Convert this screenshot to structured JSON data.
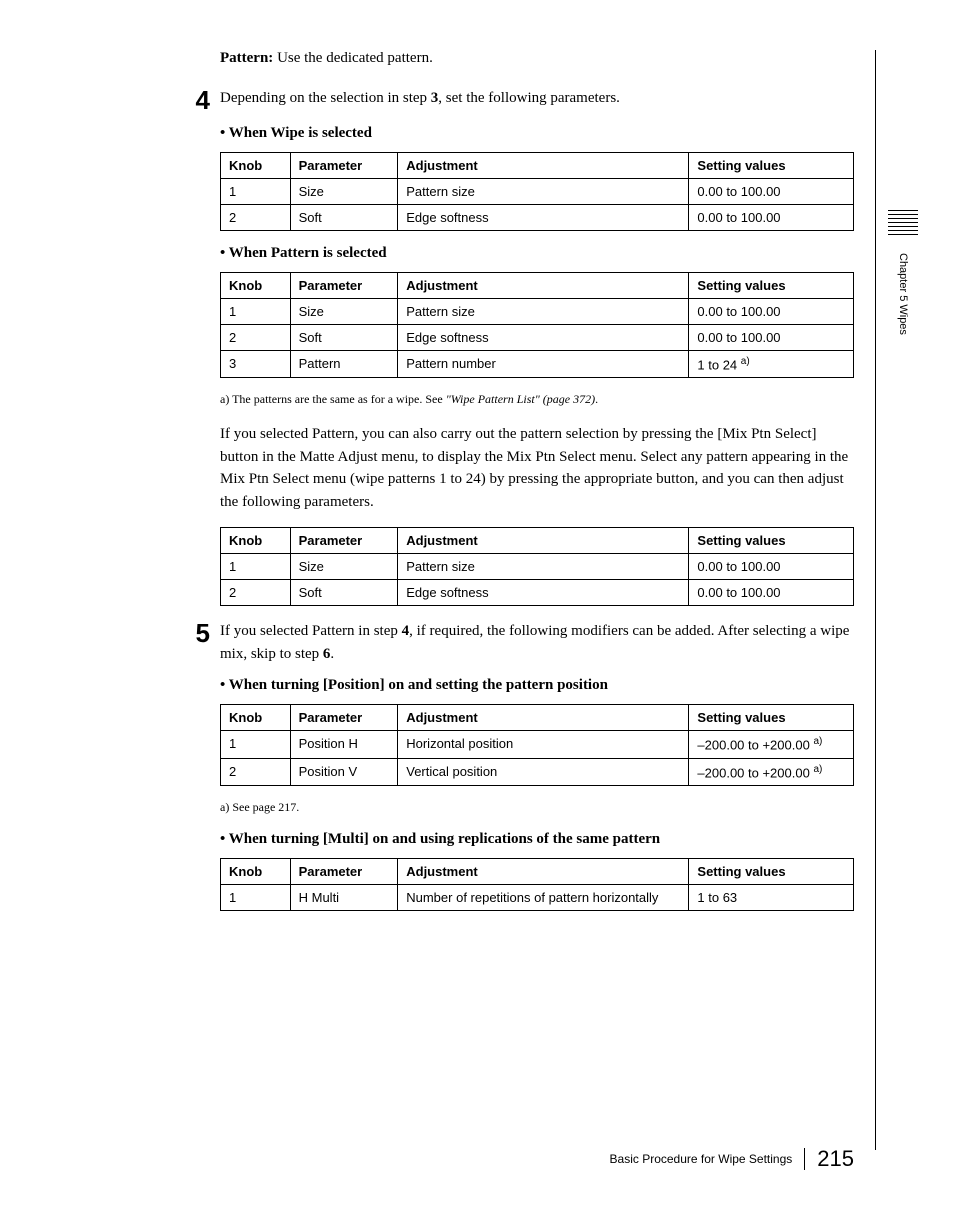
{
  "pattern_line": {
    "label": "Pattern:",
    "text": " Use the dedicated pattern."
  },
  "step4": {
    "num": "4",
    "text_before": "Depending on the selection in step ",
    "ref": "3",
    "text_after": ", set the following parameters."
  },
  "bullets": {
    "wipe": "When Wipe is selected",
    "pattern": "When Pattern is selected",
    "position": "When turning [Position] on and setting the pattern position",
    "multi": "When turning [Multi] on and using replications of the same pattern"
  },
  "headers": [
    "Knob",
    "Parameter",
    "Adjustment",
    "Setting values"
  ],
  "table_wipe": [
    [
      "1",
      "Size",
      "Pattern size",
      "0.00 to 100.00"
    ],
    [
      "2",
      "Soft",
      "Edge softness",
      "0.00 to 100.00"
    ]
  ],
  "table_pattern": [
    [
      "1",
      "Size",
      "Pattern size",
      "0.00 to 100.00"
    ],
    [
      "2",
      "Soft",
      "Edge softness",
      "0.00 to 100.00"
    ],
    [
      "3",
      "Pattern",
      "Pattern number",
      "1 to 24 ",
      "a)"
    ]
  ],
  "footnote_a": {
    "prefix": "a) The patterns are the same as for a wipe. See ",
    "italic": "\"Wipe Pattern List\" (page 372)",
    "suffix": "."
  },
  "para_pattern": "If you selected Pattern, you can also carry out the pattern selection by pressing the [Mix Ptn Select] button in the Matte Adjust menu, to display the Mix Ptn Select menu. Select any pattern appearing in the Mix Ptn Select menu (wipe patterns 1 to 24) by pressing the appropriate button, and you can then adjust the following parameters.",
  "table_mix": [
    [
      "1",
      "Size",
      "Pattern size",
      "0.00 to 100.00"
    ],
    [
      "2",
      "Soft",
      "Edge softness",
      "0.00 to 100.00"
    ]
  ],
  "step5": {
    "num": "5",
    "t1": "If you selected Pattern in step ",
    "ref1": "4",
    "t2": ", if required, the following modifiers can be added. After selecting a wipe mix, skip to step ",
    "ref2": "6",
    "t3": "."
  },
  "table_position": [
    [
      "1",
      "Position H",
      "Horizontal position",
      "–200.00 to +200.00 ",
      "a)"
    ],
    [
      "2",
      "Position V",
      "Vertical position",
      "–200.00 to +200.00 ",
      "a)"
    ]
  ],
  "footnote_pos": "a) See page 217.",
  "table_multi": [
    [
      "1",
      "H Multi",
      "Number of repetitions of pattern horizontally",
      "1 to 63"
    ]
  ],
  "side_text": "Chapter 5  Wipes",
  "footer": {
    "title": "Basic Procedure for Wipe Settings",
    "page": "215"
  }
}
